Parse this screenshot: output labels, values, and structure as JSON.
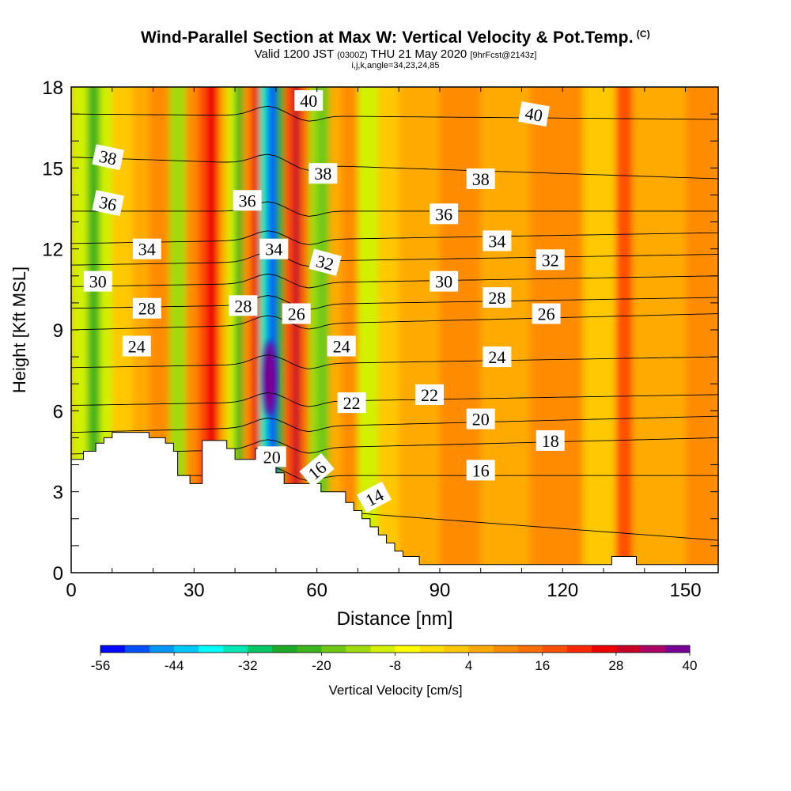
{
  "title": {
    "main": "Wind-Parallel Section at Max W: Vertical Velocity & Pot.Temp.",
    "copyright": "(C)",
    "valid_prefix": "Valid 1200 JST",
    "valid_utc": "(0300Z)",
    "valid_date": "THU 21 May 2020",
    "forecast_info": "[9hrFcst@2143z]",
    "indices": "i,j,k,angle=34,23,24,85"
  },
  "chart_data": {
    "type": "heatmap",
    "title": "Wind-Parallel Section at Max W: Vertical Velocity & Pot.Temp.",
    "xlabel": "Distance [nm]",
    "ylabel": "Height [Kft MSL]",
    "xlim": [
      0,
      158
    ],
    "ylim": [
      0,
      18
    ],
    "x_ticks": [
      0,
      30,
      60,
      90,
      120,
      150
    ],
    "y_ticks": [
      0,
      3,
      6,
      9,
      12,
      15,
      18
    ],
    "colorbar": {
      "label": "Vertical Velocity [cm/s]",
      "min": -56,
      "max": 40,
      "step": 4,
      "tick_labels": [
        "-56",
        "-44",
        "-32",
        "-20",
        "-8",
        "4",
        "16",
        "28",
        "40"
      ],
      "colors": [
        "#0008ff",
        "#0050ff",
        "#0096ff",
        "#00c8ff",
        "#00ffff",
        "#00e6b4",
        "#00c864",
        "#1eaa28",
        "#3cb41e",
        "#6ec814",
        "#a0dc0a",
        "#d2f000",
        "#ffff00",
        "#ffe000",
        "#ffc800",
        "#ffaa00",
        "#ff8c00",
        "#ff6e00",
        "#ff5000",
        "#ff2800",
        "#ee0000",
        "#c80028",
        "#aa0064",
        "#780096"
      ]
    },
    "vertical_velocity_bands": [
      {
        "x": 0,
        "x2": 4,
        "w": -10
      },
      {
        "x": 4,
        "x2": 7,
        "w": -22
      },
      {
        "x": 7,
        "x2": 10,
        "w": -12
      },
      {
        "x": 10,
        "x2": 15,
        "w": 0
      },
      {
        "x": 15,
        "x2": 19,
        "w": 6
      },
      {
        "x": 19,
        "x2": 24,
        "w": 9
      },
      {
        "x": 24,
        "x2": 28,
        "w": -14
      },
      {
        "x": 28,
        "x2": 31,
        "w": 8
      },
      {
        "x": 31,
        "x2": 33,
        "w": 18
      },
      {
        "x": 33,
        "x2": 36,
        "w": 24
      },
      {
        "x": 36,
        "x2": 38,
        "w": 4
      },
      {
        "x": 38,
        "x2": 40,
        "w": -12
      },
      {
        "x": 40,
        "x2": 42,
        "w": -22
      },
      {
        "x": 42,
        "x2": 44,
        "w": 10
      },
      {
        "x": 44,
        "x2": 46,
        "w": 25
      },
      {
        "x": 46,
        "x2": 48,
        "w": -36
      },
      {
        "x": 48,
        "x2": 50,
        "w": -50
      },
      {
        "x": 50,
        "x2": 52,
        "w": -26
      },
      {
        "x": 52,
        "x2": 54,
        "w": 18
      },
      {
        "x": 54,
        "x2": 56,
        "w": 30
      },
      {
        "x": 56,
        "x2": 58,
        "w": 12
      },
      {
        "x": 58,
        "x2": 60,
        "w": -14
      },
      {
        "x": 60,
        "x2": 63,
        "w": -20
      },
      {
        "x": 63,
        "x2": 66,
        "w": 5
      },
      {
        "x": 66,
        "x2": 70,
        "w": 10
      },
      {
        "x": 70,
        "x2": 75,
        "w": -10
      },
      {
        "x": 75,
        "x2": 80,
        "w": 1
      },
      {
        "x": 80,
        "x2": 90,
        "w": 6
      },
      {
        "x": 90,
        "x2": 100,
        "w": 9
      },
      {
        "x": 100,
        "x2": 112,
        "w": 5
      },
      {
        "x": 112,
        "x2": 125,
        "w": 10
      },
      {
        "x": 125,
        "x2": 133,
        "w": 2
      },
      {
        "x": 133,
        "x2": 137,
        "w": 16
      },
      {
        "x": 137,
        "x2": 150,
        "w": 7
      },
      {
        "x": 150,
        "x2": 158,
        "w": 11
      }
    ],
    "updraft_core": {
      "x": 48.5,
      "y": 7.2,
      "w": 40
    },
    "terrain_steps": [
      [
        0,
        4.2
      ],
      [
        3,
        4.2
      ],
      [
        3,
        4.5
      ],
      [
        6,
        4.5
      ],
      [
        6,
        4.8
      ],
      [
        8,
        4.8
      ],
      [
        8,
        5.0
      ],
      [
        10,
        5.0
      ],
      [
        10,
        5.2
      ],
      [
        19,
        5.2
      ],
      [
        19,
        5.0
      ],
      [
        23,
        5.0
      ],
      [
        23,
        4.8
      ],
      [
        25,
        4.8
      ],
      [
        25,
        4.5
      ],
      [
        26,
        4.5
      ],
      [
        26,
        3.6
      ],
      [
        29,
        3.6
      ],
      [
        29,
        3.3
      ],
      [
        32,
        3.3
      ],
      [
        32,
        4.9
      ],
      [
        38,
        4.9
      ],
      [
        38,
        4.6
      ],
      [
        40,
        4.6
      ],
      [
        40,
        4.2
      ],
      [
        45,
        4.2
      ],
      [
        45,
        4.6
      ],
      [
        47,
        4.6
      ],
      [
        47,
        4.2
      ],
      [
        50,
        4.2
      ],
      [
        50,
        3.7
      ],
      [
        52,
        3.7
      ],
      [
        52,
        3.3
      ],
      [
        61,
        3.3
      ],
      [
        61,
        3.0
      ],
      [
        67,
        3.0
      ],
      [
        67,
        2.6
      ],
      [
        69,
        2.6
      ],
      [
        69,
        2.3
      ],
      [
        71,
        2.3
      ],
      [
        71,
        2.0
      ],
      [
        73,
        2.0
      ],
      [
        73,
        1.7
      ],
      [
        75,
        1.7
      ],
      [
        75,
        1.4
      ],
      [
        77,
        1.4
      ],
      [
        77,
        1.1
      ],
      [
        79,
        1.1
      ],
      [
        79,
        0.8
      ],
      [
        81,
        0.8
      ],
      [
        81,
        0.6
      ],
      [
        85,
        0.6
      ],
      [
        85,
        0.3
      ],
      [
        132,
        0.3
      ],
      [
        132,
        0.6
      ],
      [
        138,
        0.6
      ],
      [
        138,
        0.3
      ],
      [
        158,
        0.3
      ],
      [
        158,
        0
      ]
    ],
    "theta_contours": [
      {
        "value": 14,
        "y_west": 3.0,
        "y_east": 1.2
      },
      {
        "value": 16,
        "y_west": 3.6,
        "y_east": 3.6
      },
      {
        "value": 18,
        "y_west": 4.4,
        "y_east": 5.0
      },
      {
        "value": 20,
        "y_west": 5.2,
        "y_east": 5.8
      },
      {
        "value": 22,
        "y_west": 6.2,
        "y_east": 6.6
      },
      {
        "value": 24,
        "y_west": 7.6,
        "y_east": 8.0
      },
      {
        "value": 26,
        "y_west": 9.0,
        "y_east": 9.6
      },
      {
        "value": 28,
        "y_west": 9.8,
        "y_east": 10.2
      },
      {
        "value": 30,
        "y_west": 10.6,
        "y_east": 11.0
      },
      {
        "value": 32,
        "y_west": 11.4,
        "y_east": 11.8
      },
      {
        "value": 34,
        "y_west": 12.2,
        "y_east": 12.6
      },
      {
        "value": 36,
        "y_west": 13.4,
        "y_east": 13.4
      },
      {
        "value": 38,
        "y_west": 15.4,
        "y_east": 14.6
      },
      {
        "value": 40,
        "y_west": 17.0,
        "y_east": 16.8
      }
    ],
    "contour_labels": [
      {
        "text": "38",
        "x": 9,
        "y": 15.4,
        "rot": 12
      },
      {
        "text": "36",
        "x": 9,
        "y": 13.7,
        "rot": 12
      },
      {
        "text": "34",
        "x": 18.5,
        "y": 12.0,
        "rot": 0
      },
      {
        "text": "30",
        "x": 6.5,
        "y": 10.8,
        "rot": 0
      },
      {
        "text": "28",
        "x": 18.5,
        "y": 9.8,
        "rot": 0
      },
      {
        "text": "24",
        "x": 16,
        "y": 8.4,
        "rot": 0
      },
      {
        "text": "36",
        "x": 43,
        "y": 13.8,
        "rot": 0
      },
      {
        "text": "28",
        "x": 42,
        "y": 9.9,
        "rot": 0
      },
      {
        "text": "34",
        "x": 49.5,
        "y": 12.0,
        "rot": 0
      },
      {
        "text": "40",
        "x": 58,
        "y": 17.5,
        "rot": 0
      },
      {
        "text": "38",
        "x": 61.5,
        "y": 14.8,
        "rot": 0
      },
      {
        "text": "32",
        "x": 62,
        "y": 11.5,
        "rot": 15
      },
      {
        "text": "26",
        "x": 55,
        "y": 9.6,
        "rot": 0
      },
      {
        "text": "24",
        "x": 66,
        "y": 8.4,
        "rot": 0
      },
      {
        "text": "22",
        "x": 68.5,
        "y": 6.3,
        "rot": 0
      },
      {
        "text": "22",
        "x": 87.5,
        "y": 6.6,
        "rot": 0
      },
      {
        "text": "20",
        "x": 49,
        "y": 4.3,
        "rot": 0
      },
      {
        "text": "16",
        "x": 60,
        "y": 3.8,
        "rot": -40
      },
      {
        "text": "14",
        "x": 74,
        "y": 2.8,
        "rot": -28
      },
      {
        "text": "40",
        "x": 113,
        "y": 17.0,
        "rot": 10
      },
      {
        "text": "38",
        "x": 100,
        "y": 14.6,
        "rot": 0
      },
      {
        "text": "36",
        "x": 91,
        "y": 13.3,
        "rot": 0
      },
      {
        "text": "34",
        "x": 104,
        "y": 12.3,
        "rot": 0
      },
      {
        "text": "32",
        "x": 117,
        "y": 11.6,
        "rot": 0
      },
      {
        "text": "30",
        "x": 91,
        "y": 10.8,
        "rot": 0
      },
      {
        "text": "28",
        "x": 104,
        "y": 10.2,
        "rot": 0
      },
      {
        "text": "26",
        "x": 116,
        "y": 9.6,
        "rot": 0
      },
      {
        "text": "24",
        "x": 104,
        "y": 8.0,
        "rot": 0
      },
      {
        "text": "20",
        "x": 100,
        "y": 5.7,
        "rot": 0
      },
      {
        "text": "18",
        "x": 117,
        "y": 4.9,
        "rot": 0
      },
      {
        "text": "16",
        "x": 100,
        "y": 3.8,
        "rot": 0
      }
    ]
  }
}
